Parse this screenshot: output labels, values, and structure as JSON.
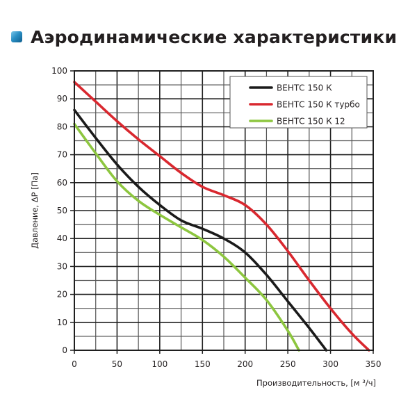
{
  "header": {
    "title": "Аэродинамические характеристики",
    "icon": "blue-square-bullet-icon"
  },
  "chart_data": {
    "type": "line",
    "title": "Аэродинамические характеристики",
    "xlabel": "Производительность, [м ³/ч]",
    "ylabel": "Давление, ΔP [Па]",
    "xlim": [
      0,
      350
    ],
    "ylim": [
      0,
      100
    ],
    "xticks": [
      0,
      50,
      100,
      150,
      200,
      250,
      300,
      350
    ],
    "yticks": [
      0,
      10,
      20,
      30,
      40,
      50,
      60,
      70,
      80,
      90,
      100
    ],
    "x_minor_step": 25,
    "y_minor_step": 5,
    "grid": true,
    "legend_position": "top-right",
    "series": [
      {
        "name": "ВЕНТС 150 К",
        "color": "#1a1a1a",
        "points": [
          [
            0,
            86
          ],
          [
            25,
            76
          ],
          [
            50,
            66.5
          ],
          [
            75,
            58.5
          ],
          [
            100,
            52
          ],
          [
            125,
            46.5
          ],
          [
            150,
            43.5
          ],
          [
            175,
            40
          ],
          [
            200,
            35
          ],
          [
            225,
            27
          ],
          [
            250,
            17.5
          ],
          [
            275,
            8
          ],
          [
            295,
            0
          ]
        ]
      },
      {
        "name": "ВЕНТС 150 К турбо",
        "color": "#d9282f",
        "points": [
          [
            0,
            96
          ],
          [
            25,
            89
          ],
          [
            50,
            82
          ],
          [
            75,
            75.5
          ],
          [
            100,
            69.5
          ],
          [
            125,
            63.5
          ],
          [
            150,
            58.5
          ],
          [
            175,
            55.5
          ],
          [
            200,
            52
          ],
          [
            225,
            45
          ],
          [
            250,
            35.5
          ],
          [
            275,
            25
          ],
          [
            300,
            15
          ],
          [
            325,
            6
          ],
          [
            345,
            0
          ]
        ]
      },
      {
        "name": "ВЕНТС 150 К 12",
        "color": "#8dc63f",
        "points": [
          [
            0,
            81
          ],
          [
            25,
            70.5
          ],
          [
            50,
            60.5
          ],
          [
            75,
            53.5
          ],
          [
            100,
            48.5
          ],
          [
            125,
            44
          ],
          [
            150,
            39.5
          ],
          [
            175,
            33.5
          ],
          [
            200,
            26
          ],
          [
            225,
            18
          ],
          [
            250,
            7
          ],
          [
            263,
            0
          ]
        ]
      }
    ]
  },
  "legend": {
    "items": [
      {
        "label": "ВЕНТС 150 К"
      },
      {
        "label": "ВЕНТС 150 К турбо"
      },
      {
        "label": "ВЕНТС 150 К 12"
      }
    ]
  }
}
